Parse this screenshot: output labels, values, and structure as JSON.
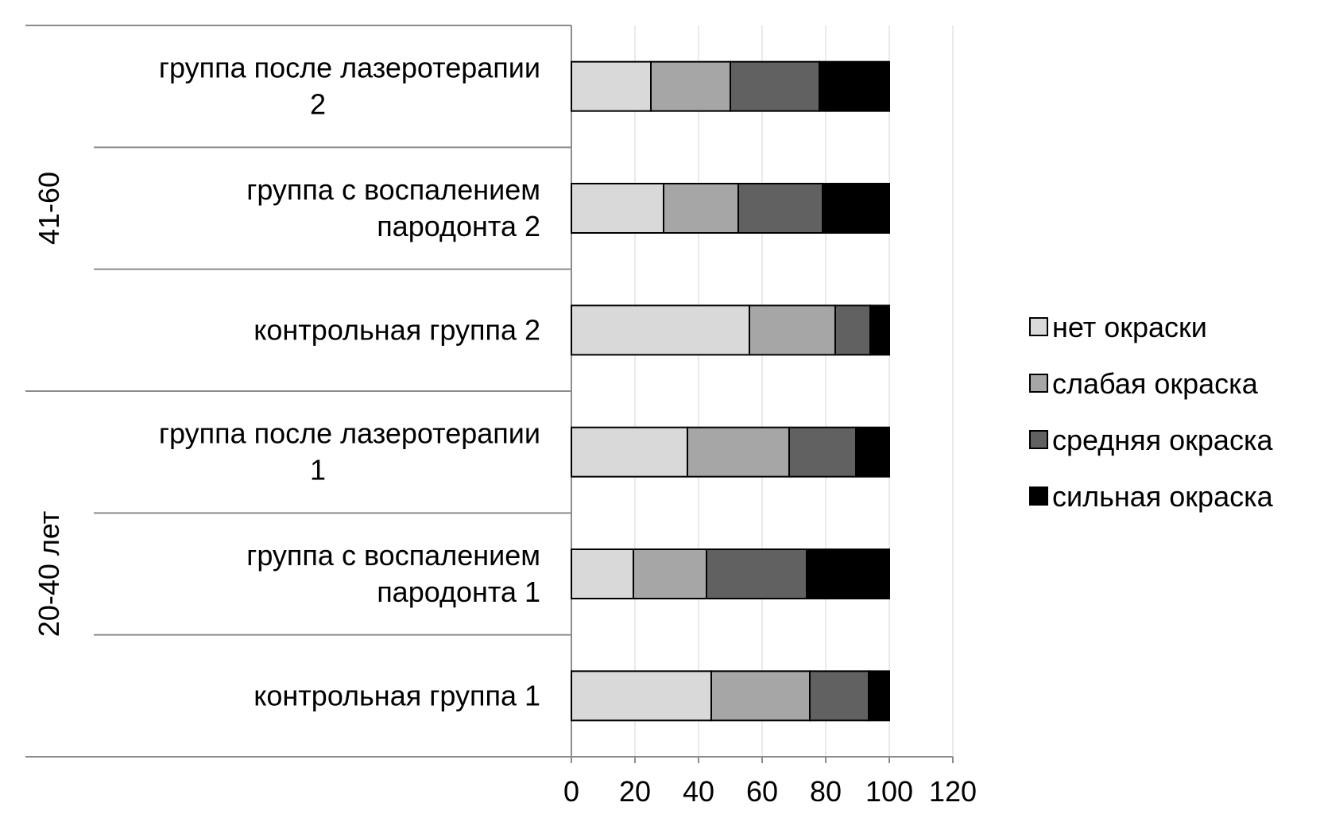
{
  "chart_data": {
    "type": "bar",
    "orientation": "horizontal",
    "stacked": true,
    "title": "",
    "xlabel": "",
    "ylabel": "",
    "xlim": [
      0,
      120
    ],
    "x_ticks": [
      "0",
      "20",
      "40",
      "60",
      "80",
      "100",
      "120"
    ],
    "grid": true,
    "legend_position": "right",
    "groups": [
      {
        "label": "41-60",
        "categories": [
          {
            "lines": [
              "группа после лазеротерапии",
              "2"
            ]
          },
          {
            "lines": [
              "группа с воспалением",
              "пародонта 2"
            ]
          },
          {
            "lines": [
              "контрольная группа 2"
            ]
          }
        ]
      },
      {
        "label": "20-40 лет",
        "categories": [
          {
            "lines": [
              "группа после лазеротерапии",
              "1"
            ]
          },
          {
            "lines": [
              "группа с воспалением",
              "пародонта 1"
            ]
          },
          {
            "lines": [
              "контрольная группа 1"
            ]
          }
        ]
      }
    ],
    "series": [
      {
        "name": "нет окраски",
        "color": "#d9d9d9",
        "values": [
          25,
          29,
          56,
          36.5,
          19.5,
          44
        ]
      },
      {
        "name": "слабая окраска",
        "color": "#a6a6a6",
        "values": [
          25,
          23.5,
          27,
          32,
          23,
          31
        ]
      },
      {
        "name": "средняя окраска",
        "color": "#616161",
        "values": [
          28,
          26.5,
          11,
          21,
          31.5,
          18.5
        ]
      },
      {
        "name": "сильная окраска",
        "color": "#000000",
        "values": [
          22,
          21,
          6,
          10.5,
          26,
          6.5
        ]
      }
    ]
  }
}
